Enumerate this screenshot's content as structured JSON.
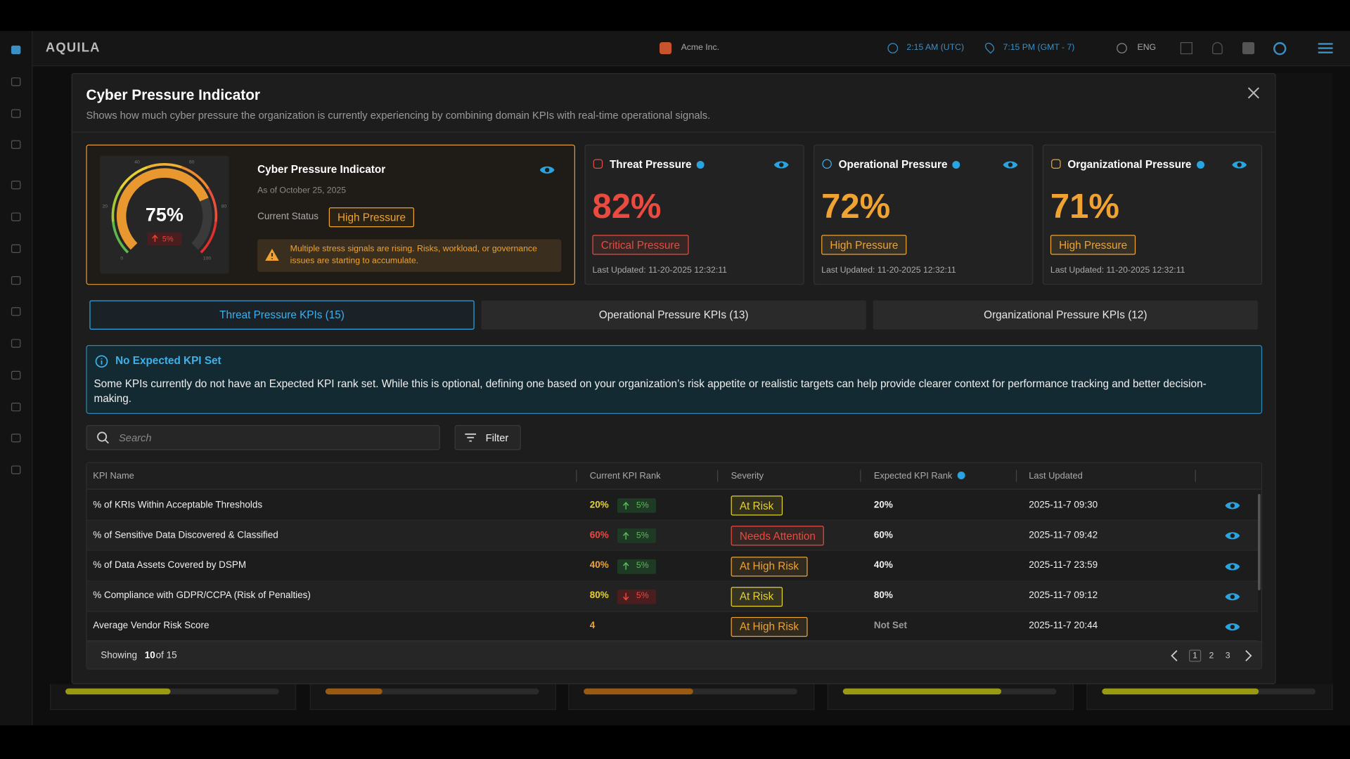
{
  "header": {
    "logo": "AQUILA",
    "org": "Acme Inc.",
    "time_utc": "2:15 AM (UTC)",
    "time_local": "7:15 PM (GMT - 7)",
    "language": "ENG"
  },
  "modal": {
    "title": "Cyber Pressure Indicator",
    "subtitle": "Shows how much cyber pressure the organization is currently experiencing by combining domain KPIs with real-time operational signals.",
    "summary": {
      "title": "Cyber Pressure Indicator",
      "gauge_value": 75,
      "gauge_value_label": "75%",
      "gauge_ticks": [
        0,
        20,
        40,
        60,
        80,
        100
      ],
      "change": "5%",
      "as_of": "As of October 25, 2025",
      "status_label": "Current Status",
      "status": "High Pressure",
      "warning": "Multiple stress signals are rising. Risks, workload, or governance issues are starting to accumulate."
    },
    "pressure_cards": [
      {
        "title": "Threat Pressure",
        "value": "82%",
        "status": "Critical Pressure",
        "last_updated": "Last Updated: 11-20-2025 12:32:11",
        "color": "#ea4a3f"
      },
      {
        "title": "Operational Pressure",
        "value": "72%",
        "status": "High Pressure",
        "last_updated": "Last Updated: 11-20-2025 12:32:11",
        "color": "#f0a332"
      },
      {
        "title": "Organizational Pressure",
        "value": "71%",
        "status": "High Pressure",
        "last_updated": "Last Updated: 11-20-2025 12:32:11",
        "color": "#f0a332"
      }
    ],
    "tabs": [
      "Threat Pressure KPIs (15)",
      "Operational Pressure KPIs (13)",
      "Organizational Pressure KPIs (12)"
    ],
    "notice": {
      "title": "No Expected KPI Set",
      "text": "Some KPIs currently do not have an Expected KPI rank set. While this is optional, defining one based on your organization’s risk appetite or realistic targets can help provide clearer context for performance tracking and better decision-making."
    },
    "search_placeholder": "Search",
    "filter": "Filter",
    "table": {
      "columns": [
        "KPI Name",
        "Current KPI Rank",
        "Severity",
        "Expected KPI Rank",
        "Last Updated"
      ],
      "rows": [
        {
          "name": "% of KRIs Within Acceptable Thresholds",
          "rank": "20%",
          "change": "5%",
          "direction": "up",
          "severity": "At Risk",
          "expected": "20%",
          "updated": "2025-11-7 09:30"
        },
        {
          "name": "% of Sensitive Data Discovered & Classified",
          "rank": "60%",
          "change": "5%",
          "direction": "up",
          "severity": "Needs Attention",
          "expected": "60%",
          "updated": "2025-11-7 09:42"
        },
        {
          "name": "% of Data Assets Covered by DSPM",
          "rank": "40%",
          "change": "5%",
          "direction": "up",
          "severity": "At High Risk",
          "expected": "40%",
          "updated": "2025-11-7 23:59"
        },
        {
          "name": "% Compliance with GDPR/CCPA (Risk of Penalties)",
          "rank": "80%",
          "change": "5%",
          "direction": "down",
          "severity": "At Risk",
          "expected": "80%",
          "updated": "2025-11-7 09:12"
        },
        {
          "name": "Average Vendor Risk Score",
          "rank": "4",
          "severity": "At High Risk",
          "expected": "Not Set",
          "updated": "2025-11-7 20:44"
        }
      ]
    },
    "footer": {
      "showing": "Showing",
      "count": "10",
      "of": "of 15",
      "pages": [
        "1",
        "2",
        "3"
      ]
    }
  }
}
